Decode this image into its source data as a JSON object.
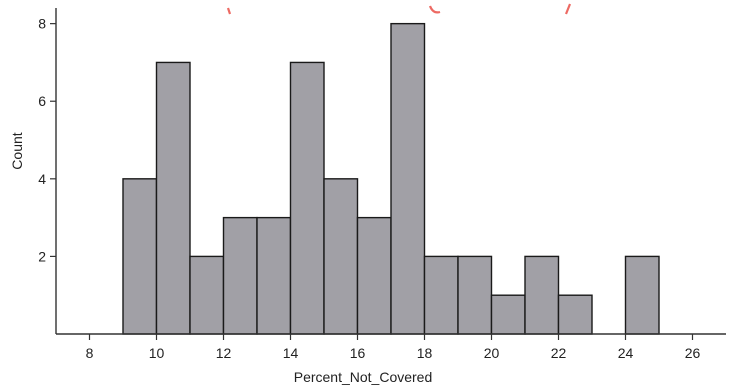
{
  "chart_data": {
    "type": "bar",
    "bins": [
      {
        "x0": 9,
        "x1": 10,
        "count": 4
      },
      {
        "x0": 10,
        "x1": 11,
        "count": 7
      },
      {
        "x0": 11,
        "x1": 12,
        "count": 2
      },
      {
        "x0": 12,
        "x1": 13,
        "count": 3
      },
      {
        "x0": 13,
        "x1": 14,
        "count": 3
      },
      {
        "x0": 14,
        "x1": 15,
        "count": 7
      },
      {
        "x0": 15,
        "x1": 16,
        "count": 4
      },
      {
        "x0": 16,
        "x1": 17,
        "count": 3
      },
      {
        "x0": 17,
        "x1": 18,
        "count": 8
      },
      {
        "x0": 18,
        "x1": 19,
        "count": 2
      },
      {
        "x0": 19,
        "x1": 20,
        "count": 2
      },
      {
        "x0": 20,
        "x1": 21,
        "count": 1
      },
      {
        "x0": 21,
        "x1": 22,
        "count": 2
      },
      {
        "x0": 22,
        "x1": 23,
        "count": 1
      },
      {
        "x0": 24,
        "x1": 25,
        "count": 2
      }
    ],
    "xlabel": "Percent_Not_Covered",
    "ylabel": "Count",
    "xlim": [
      7,
      27
    ],
    "ylim": [
      0,
      8.3
    ],
    "xticks": [
      8,
      10,
      12,
      14,
      16,
      18,
      20,
      22,
      24,
      26
    ],
    "yticks": [
      2,
      4,
      6,
      8
    ],
    "grid": false,
    "bar_color": "#a1a0a6",
    "edge_color": "#1a1a1a"
  }
}
